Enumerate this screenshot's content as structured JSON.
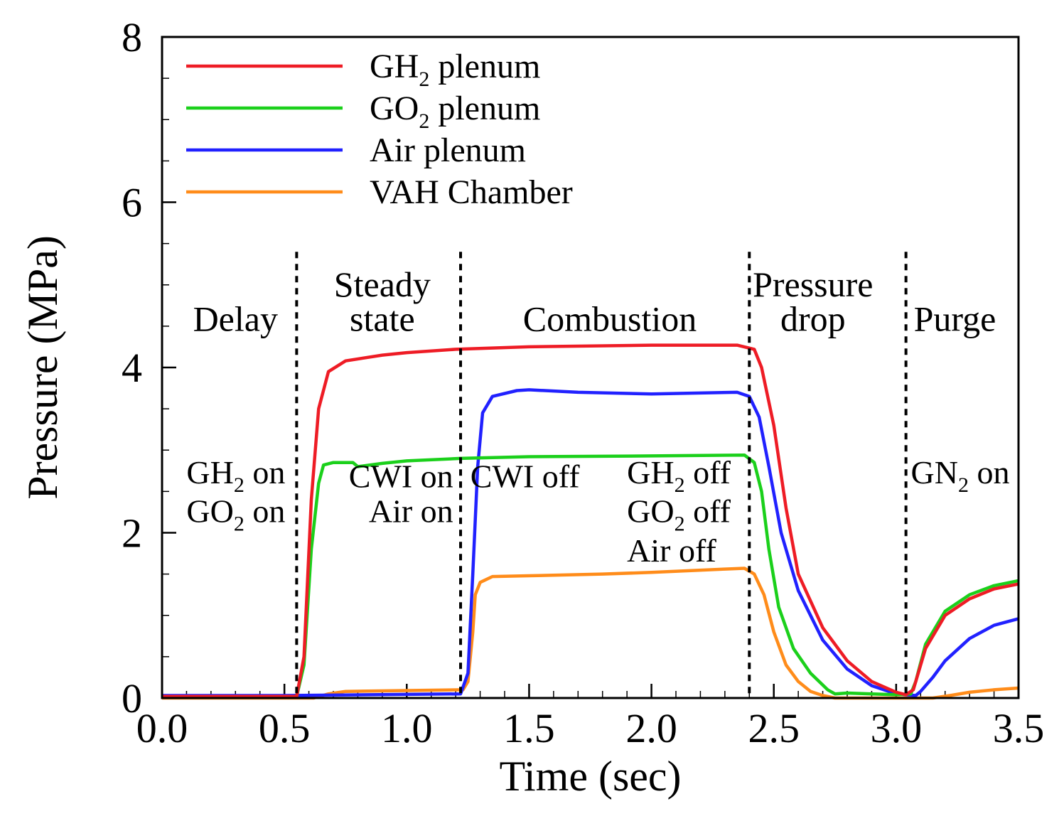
{
  "chart_data": {
    "type": "line",
    "xlabel": "Time (sec)",
    "ylabel": "Pressure (MPa)",
    "xlim": [
      0,
      3.5
    ],
    "ylim": [
      0,
      8
    ],
    "x_ticks": [
      0.0,
      0.5,
      1.0,
      1.5,
      2.0,
      2.5,
      3.0,
      3.5
    ],
    "x_tick_labels": [
      "0.0",
      "0.5",
      "1.0",
      "1.5",
      "2.0",
      "2.5",
      "3.0",
      "3.5"
    ],
    "y_ticks": [
      0,
      2,
      4,
      6,
      8
    ],
    "y_tick_labels": [
      "0",
      "2",
      "4",
      "6",
      "8"
    ],
    "legend_position": "top-left",
    "series": [
      {
        "name": "GH2 plenum",
        "legend_main": "GH",
        "legend_sub": "2",
        "legend_rest": " plenum",
        "color": "#ee1c25",
        "points": [
          [
            0.0,
            0.02
          ],
          [
            0.55,
            0.02
          ],
          [
            0.58,
            0.5
          ],
          [
            0.61,
            2.4
          ],
          [
            0.64,
            3.5
          ],
          [
            0.68,
            3.95
          ],
          [
            0.75,
            4.08
          ],
          [
            0.9,
            4.15
          ],
          [
            1.0,
            4.18
          ],
          [
            1.2,
            4.22
          ],
          [
            1.5,
            4.25
          ],
          [
            2.0,
            4.27
          ],
          [
            2.35,
            4.27
          ],
          [
            2.42,
            4.22
          ],
          [
            2.45,
            4.0
          ],
          [
            2.5,
            3.3
          ],
          [
            2.55,
            2.3
          ],
          [
            2.6,
            1.5
          ],
          [
            2.7,
            0.85
          ],
          [
            2.8,
            0.45
          ],
          [
            2.9,
            0.2
          ],
          [
            3.0,
            0.07
          ],
          [
            3.04,
            0.04
          ],
          [
            3.07,
            0.1
          ],
          [
            3.12,
            0.6
          ],
          [
            3.2,
            1.0
          ],
          [
            3.3,
            1.2
          ],
          [
            3.4,
            1.32
          ],
          [
            3.5,
            1.38
          ]
        ]
      },
      {
        "name": "GO2 plenum",
        "legend_main": "GO",
        "legend_sub": "2",
        "legend_rest": " plenum",
        "color": "#1bd01b",
        "points": [
          [
            0.0,
            0.02
          ],
          [
            0.55,
            0.02
          ],
          [
            0.58,
            0.4
          ],
          [
            0.61,
            1.8
          ],
          [
            0.64,
            2.6
          ],
          [
            0.66,
            2.82
          ],
          [
            0.7,
            2.85
          ],
          [
            0.78,
            2.85
          ],
          [
            0.8,
            2.8
          ],
          [
            0.9,
            2.84
          ],
          [
            1.0,
            2.87
          ],
          [
            1.22,
            2.9
          ],
          [
            1.5,
            2.92
          ],
          [
            2.0,
            2.93
          ],
          [
            2.38,
            2.94
          ],
          [
            2.42,
            2.85
          ],
          [
            2.45,
            2.5
          ],
          [
            2.48,
            1.8
          ],
          [
            2.52,
            1.1
          ],
          [
            2.58,
            0.6
          ],
          [
            2.65,
            0.3
          ],
          [
            2.72,
            0.1
          ],
          [
            2.75,
            0.05
          ],
          [
            2.8,
            0.06
          ],
          [
            2.9,
            0.05
          ],
          [
            3.0,
            0.04
          ],
          [
            3.06,
            0.05
          ],
          [
            3.08,
            0.2
          ],
          [
            3.12,
            0.65
          ],
          [
            3.2,
            1.05
          ],
          [
            3.3,
            1.25
          ],
          [
            3.4,
            1.36
          ],
          [
            3.5,
            1.42
          ]
        ]
      },
      {
        "name": "Air plenum",
        "legend_main": "Air plenum",
        "legend_sub": "",
        "legend_rest": "",
        "color": "#2121ff",
        "points": [
          [
            0.0,
            0.03
          ],
          [
            0.5,
            0.03
          ],
          [
            1.22,
            0.05
          ],
          [
            1.25,
            0.3
          ],
          [
            1.27,
            1.5
          ],
          [
            1.29,
            2.8
          ],
          [
            1.31,
            3.45
          ],
          [
            1.35,
            3.65
          ],
          [
            1.45,
            3.72
          ],
          [
            1.5,
            3.73
          ],
          [
            1.7,
            3.7
          ],
          [
            2.0,
            3.68
          ],
          [
            2.35,
            3.7
          ],
          [
            2.4,
            3.65
          ],
          [
            2.44,
            3.4
          ],
          [
            2.48,
            2.8
          ],
          [
            2.53,
            2.0
          ],
          [
            2.6,
            1.3
          ],
          [
            2.7,
            0.7
          ],
          [
            2.8,
            0.35
          ],
          [
            2.9,
            0.15
          ],
          [
            3.0,
            0.05
          ],
          [
            3.08,
            0.03
          ],
          [
            3.1,
            0.08
          ],
          [
            3.15,
            0.25
          ],
          [
            3.2,
            0.45
          ],
          [
            3.3,
            0.72
          ],
          [
            3.4,
            0.88
          ],
          [
            3.5,
            0.96
          ]
        ]
      },
      {
        "name": "VAH Chamber",
        "legend_main": "VAH Chamber",
        "legend_sub": "",
        "legend_rest": "",
        "color": "#ff8c1a",
        "points": [
          [
            0.0,
            0.0
          ],
          [
            0.62,
            0.0
          ],
          [
            0.68,
            0.05
          ],
          [
            0.75,
            0.08
          ],
          [
            1.0,
            0.09
          ],
          [
            1.23,
            0.1
          ],
          [
            1.25,
            0.2
          ],
          [
            1.27,
            0.8
          ],
          [
            1.28,
            1.25
          ],
          [
            1.3,
            1.4
          ],
          [
            1.35,
            1.47
          ],
          [
            1.5,
            1.48
          ],
          [
            1.8,
            1.5
          ],
          [
            2.0,
            1.52
          ],
          [
            2.3,
            1.56
          ],
          [
            2.38,
            1.57
          ],
          [
            2.42,
            1.5
          ],
          [
            2.46,
            1.25
          ],
          [
            2.5,
            0.8
          ],
          [
            2.55,
            0.4
          ],
          [
            2.6,
            0.2
          ],
          [
            2.65,
            0.08
          ],
          [
            2.7,
            0.03
          ],
          [
            2.75,
            0.0
          ],
          [
            3.15,
            0.0
          ],
          [
            3.22,
            0.03
          ],
          [
            3.3,
            0.07
          ],
          [
            3.4,
            0.1
          ],
          [
            3.5,
            0.12
          ]
        ]
      }
    ],
    "phase_lines_x": [
      0.55,
      1.22,
      2.4,
      3.04
    ],
    "phases": [
      {
        "x": 0.3,
        "line1": "",
        "line2": "Delay"
      },
      {
        "x": 0.9,
        "line1": "Steady",
        "line2": "state"
      },
      {
        "x": 1.83,
        "line1": "",
        "line2": "Combustion"
      },
      {
        "x": 2.66,
        "line1": "Pressure",
        "line2": "drop"
      },
      {
        "x": 3.24,
        "line1": "",
        "line2": "Purge"
      }
    ],
    "events": [
      {
        "main": "GH",
        "sub": "2",
        "rest": " on",
        "x": 0.1,
        "y": 2.6,
        "anchor": "start"
      },
      {
        "main": "GO",
        "sub": "2",
        "rest": " on",
        "x": 0.1,
        "y": 2.13,
        "anchor": "start"
      },
      {
        "main": "CWI on",
        "sub": "",
        "rest": "",
        "x": 1.19,
        "y": 2.55,
        "anchor": "end"
      },
      {
        "main": "Air on",
        "sub": "",
        "rest": "",
        "x": 1.19,
        "y": 2.13,
        "anchor": "end"
      },
      {
        "main": "CWI off",
        "sub": "",
        "rest": "",
        "x": 1.26,
        "y": 2.55,
        "anchor": "start"
      },
      {
        "main": "GH",
        "sub": "2",
        "rest": " off",
        "x": 1.9,
        "y": 2.6,
        "anchor": "start"
      },
      {
        "main": "GO",
        "sub": "2",
        "rest": " off",
        "x": 1.9,
        "y": 2.13,
        "anchor": "start"
      },
      {
        "main": "Air   off",
        "sub": "",
        "rest": "",
        "x": 1.9,
        "y": 1.65,
        "anchor": "start"
      },
      {
        "main": "GN",
        "sub": "2",
        "rest": " on",
        "x": 3.06,
        "y": 2.6,
        "anchor": "start"
      }
    ]
  }
}
